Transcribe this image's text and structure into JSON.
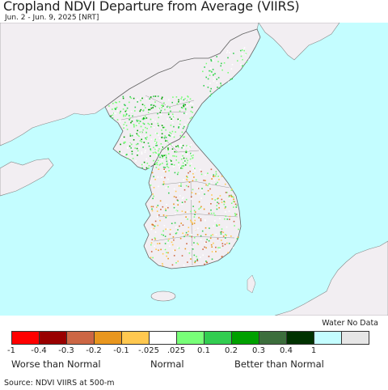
{
  "header": {
    "title": "Cropland NDVI Departure from Average (VIIRS)",
    "subtitle": "Jun. 2 - Jun. 9, 2025 [NRT]"
  },
  "map": {
    "region": "Korean Peninsula",
    "colors": {
      "water": "#c4fdff",
      "land_no_crop": "#f2eef2",
      "border": "#777777"
    }
  },
  "legend": {
    "water_no_data_label": "Water No Data",
    "classes": [
      {
        "color": "#ff0000"
      },
      {
        "color": "#990000"
      },
      {
        "color": "#cc6644"
      },
      {
        "color": "#e8961e"
      },
      {
        "color": "#ffc850"
      },
      {
        "color": "#ffffff"
      },
      {
        "color": "#78ff78"
      },
      {
        "color": "#32cd50"
      },
      {
        "color": "#00a000"
      },
      {
        "color": "#3c6e3c"
      },
      {
        "color": "#003200"
      },
      {
        "color": "#c4fdff"
      },
      {
        "color": "#e6e6e6"
      }
    ],
    "ticks": [
      "-1",
      "-0.4",
      "-0.3",
      "-0.2",
      "-0.1",
      "-.025",
      ".025",
      "0.1",
      "0.2",
      "0.3",
      "0.4",
      "1"
    ],
    "categories": {
      "worse": "Worse than Normal",
      "normal": "Normal",
      "better": "Better than Normal"
    }
  },
  "footer": {
    "source": "Source: NDVI VIIRS at 500-m"
  }
}
